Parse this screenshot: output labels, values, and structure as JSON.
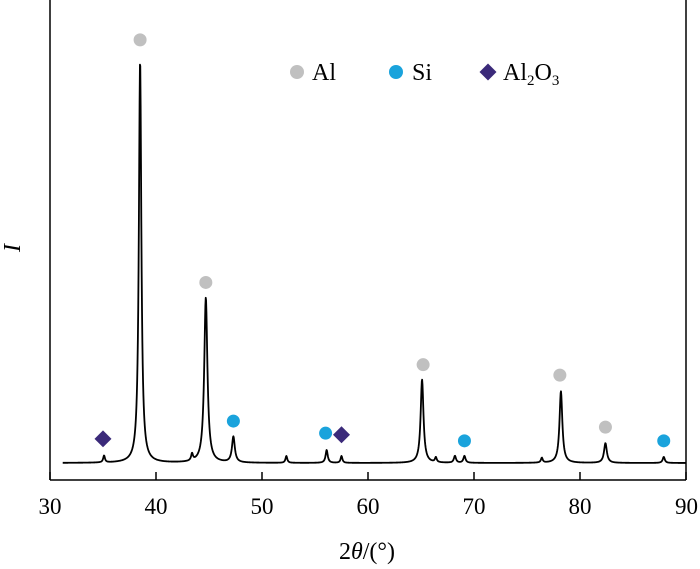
{
  "chart_data": {
    "type": "line",
    "xlabel_parts": {
      "lead": "2",
      "symbol": "θ",
      "tail": "/(°)"
    },
    "ylabel": "I",
    "xlim": [
      30,
      90
    ],
    "x_ticks": [
      "30",
      "40",
      "50",
      "60",
      "70",
      "80",
      "90"
    ],
    "colors": {
      "Al": "#c0c0c0",
      "Si": "#1aa3dc",
      "Al2O3": "#3b2a7a",
      "line": "#000000"
    },
    "legend": {
      "position": "top-right",
      "items": [
        {
          "key": "Al",
          "label": "Al",
          "marker": "circle"
        },
        {
          "key": "Si",
          "label": "Si",
          "marker": "circle"
        },
        {
          "key": "Al2O3",
          "label_parts": [
            "Al",
            "2",
            "O",
            "3"
          ],
          "marker": "diamond"
        }
      ]
    },
    "series": [
      {
        "peaks": [
          {
            "x": 35.1,
            "y": 0.017,
            "w": 0.1
          },
          {
            "x": 38.5,
            "y": 1.0,
            "w": 0.14
          },
          {
            "x": 43.4,
            "y": 0.017,
            "w": 0.1
          },
          {
            "x": 44.7,
            "y": 0.41,
            "w": 0.18
          },
          {
            "x": 47.3,
            "y": 0.064,
            "w": 0.16
          },
          {
            "x": 52.3,
            "y": 0.017,
            "w": 0.1
          },
          {
            "x": 56.1,
            "y": 0.032,
            "w": 0.12
          },
          {
            "x": 57.5,
            "y": 0.017,
            "w": 0.1
          },
          {
            "x": 65.1,
            "y": 0.207,
            "w": 0.16
          },
          {
            "x": 66.4,
            "y": 0.012,
            "w": 0.1
          },
          {
            "x": 68.2,
            "y": 0.017,
            "w": 0.12
          },
          {
            "x": 69.1,
            "y": 0.017,
            "w": 0.12
          },
          {
            "x": 76.4,
            "y": 0.012,
            "w": 0.1
          },
          {
            "x": 78.2,
            "y": 0.178,
            "w": 0.16
          },
          {
            "x": 82.4,
            "y": 0.049,
            "w": 0.16
          },
          {
            "x": 87.9,
            "y": 0.015,
            "w": 0.12
          }
        ]
      }
    ],
    "peak_markers": [
      {
        "phase": "Al2O3",
        "x": 35.0,
        "y": 0.06
      },
      {
        "phase": "Al",
        "x": 38.5,
        "y": 1.05
      },
      {
        "phase": "Al",
        "x": 44.7,
        "y": 0.448
      },
      {
        "phase": "Si",
        "x": 47.3,
        "y": 0.104
      },
      {
        "phase": "Si",
        "x": 56.0,
        "y": 0.074
      },
      {
        "phase": "Al2O3",
        "x": 57.5,
        "y": 0.07
      },
      {
        "phase": "Al",
        "x": 65.2,
        "y": 0.244
      },
      {
        "phase": "Si",
        "x": 69.1,
        "y": 0.055
      },
      {
        "phase": "Al",
        "x": 78.1,
        "y": 0.218
      },
      {
        "phase": "Al",
        "x": 82.4,
        "y": 0.089
      },
      {
        "phase": "Si",
        "x": 87.9,
        "y": 0.055
      }
    ]
  }
}
